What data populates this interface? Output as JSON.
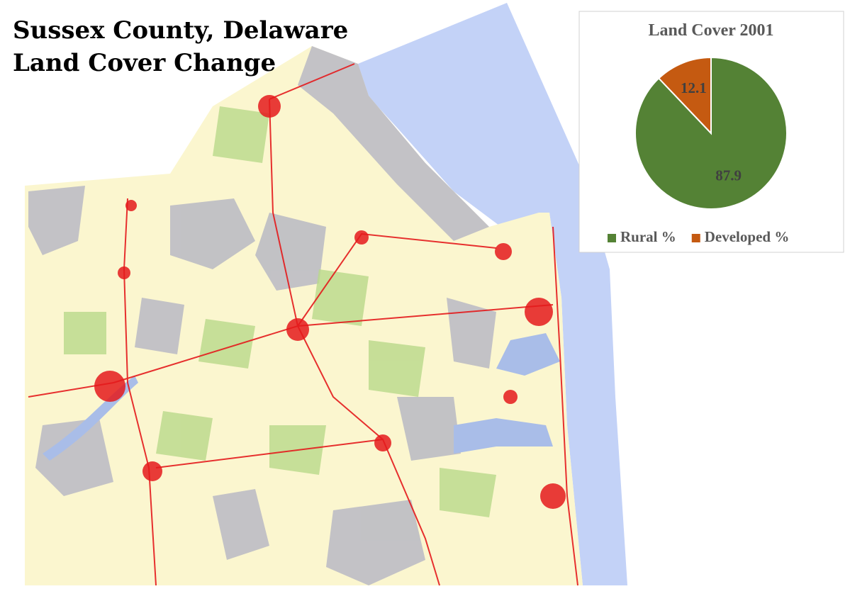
{
  "map": {
    "title_lines": [
      "Sussex County, Delaware",
      "Land Cover Change"
    ]
  },
  "chart_data": {
    "type": "pie",
    "title": "Land Cover 2001",
    "categories": [
      "Rural %",
      "Developed %"
    ],
    "values": [
      87.9,
      12.1
    ],
    "colors": [
      "#548235",
      "#c55a11"
    ],
    "legend": "bottom"
  }
}
